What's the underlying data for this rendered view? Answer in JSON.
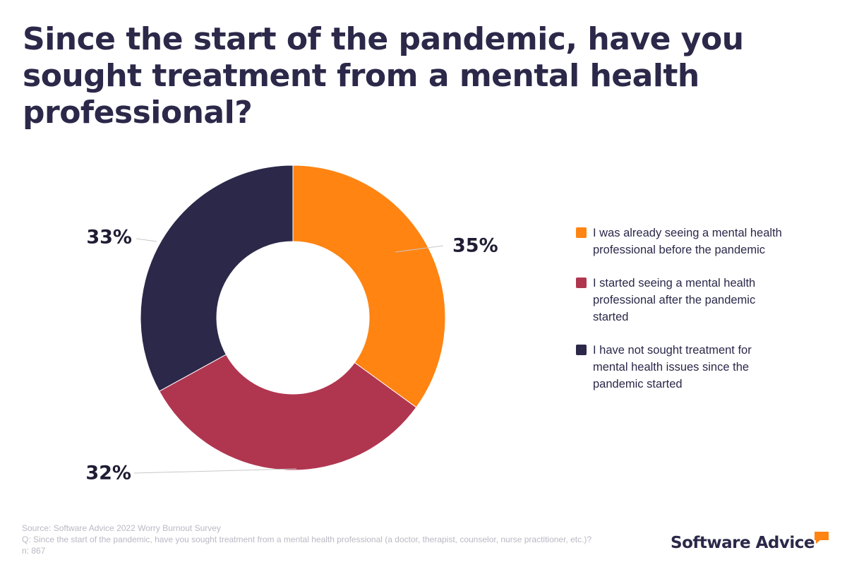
{
  "title": "Since the start of the pandemic, have you sought treatment from a mental health professional?",
  "chart_data": {
    "type": "pie",
    "donut": true,
    "slices": [
      {
        "label": "I was already seeing a mental health professional before the pandemic",
        "value": 35,
        "value_label": "35%",
        "color": "#ff8412"
      },
      {
        "label": "I started seeing a mental health professional after the pandemic started",
        "value": 32,
        "value_label": "32%",
        "color": "#b03650"
      },
      {
        "label": "I have not sought treatment for mental health issues since the pandemic started",
        "value": 33,
        "value_label": "33%",
        "color": "#2b2849"
      }
    ],
    "legend_position": "right"
  },
  "footer": {
    "source": "Source: Software Advice 2022 Worry Burnout Survey",
    "question": "Q: Since the start of the pandemic, have you sought treatment from a mental health professional (a doctor, therapist, counselor, nurse practitioner, etc.)?",
    "n": "n: 867"
  },
  "logo": {
    "text": "Software Advice",
    "color": "#ff8412"
  }
}
